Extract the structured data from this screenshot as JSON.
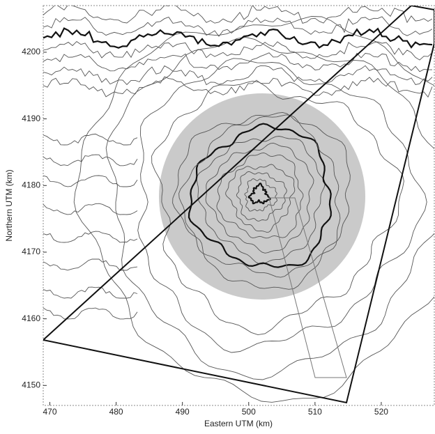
{
  "chart_data": {
    "type": "contour-map",
    "xlabel": "Eastern UTM (km)",
    "ylabel": "Northern UTM (km)",
    "xlim": [
      469,
      528
    ],
    "ylim": [
      4147,
      4207
    ],
    "xticks": [
      470,
      480,
      490,
      500,
      510,
      520
    ],
    "yticks": [
      4150,
      4160,
      4170,
      4180,
      4190,
      4200
    ]
  }
}
